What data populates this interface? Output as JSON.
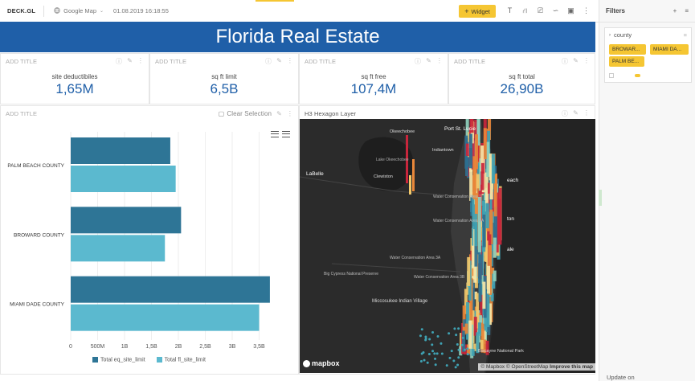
{
  "toolbar": {
    "brand": "DECK.GL",
    "map_source": "Google Map",
    "date": "01.08.2019 16:18:55",
    "widget_label": "Widget"
  },
  "dashboard_title": "Florida Real Estate",
  "kpis": [
    {
      "header": "ADD TITLE",
      "label": "site deductibiles",
      "value": "1,65M"
    },
    {
      "header": "ADD TITLE",
      "label": "sq ft limit",
      "value": "6,5B"
    },
    {
      "header": "ADD TITLE",
      "label": "sq ft free",
      "value": "107,4M"
    },
    {
      "header": "ADD TITLE",
      "label": "sq ft total",
      "value": "26,90B"
    }
  ],
  "bar_panel": {
    "header": "ADD TITLE",
    "clear_selection": "Clear Selection"
  },
  "map_panel": {
    "header": "H3 Hexagon Layer",
    "places": [
      "Okeechobee",
      "Port St. Lucie",
      "Indiantown",
      "Lake Okeechobee",
      "LaBelle",
      "Clewiston",
      "Water Conservation Area 1",
      "Water Conservation Area 2A",
      "Water Conservation Area 3A",
      "Water Conservation Area 3B",
      "Big Cypress National Preserve",
      "Miccosukee Indian Village",
      "Biscayne National Park",
      "each",
      "ton",
      "ale"
    ],
    "logo": "mapbox",
    "attribution": "© Mapbox © OpenStreetMap",
    "improve": "Improve this map"
  },
  "chart_data": {
    "type": "bar",
    "orientation": "horizontal",
    "categories": [
      "PALM BEACH COUNTY",
      "BROWARD COUNTY",
      "MIAMI DADE COUNTY"
    ],
    "series": [
      {
        "name": "Total eq_site_limit",
        "values": [
          1.85,
          2.05,
          3.7
        ],
        "color": "#2e7596"
      },
      {
        "name": "Total fl_site_limit",
        "values": [
          1.95,
          1.75,
          3.5
        ],
        "color": "#5bb9cf"
      }
    ],
    "x_ticks": [
      "0",
      "500M",
      "1B",
      "1,5B",
      "2B",
      "2,5B",
      "3B",
      "3,5B"
    ],
    "xlim": [
      0,
      4
    ],
    "unit": "B",
    "grid": true,
    "legend_position": "bottom"
  },
  "filters": {
    "title": "Filters",
    "field": "county",
    "chips": [
      "BROWAR...",
      "MIAMI DA...",
      "PALM BE..."
    ],
    "update_on": "Update on"
  },
  "colors": {
    "banner": "#1f5fa8",
    "kpi_value": "#1f5fa8",
    "accent": "#f5c633",
    "map_bg": "#2b2b2b"
  }
}
